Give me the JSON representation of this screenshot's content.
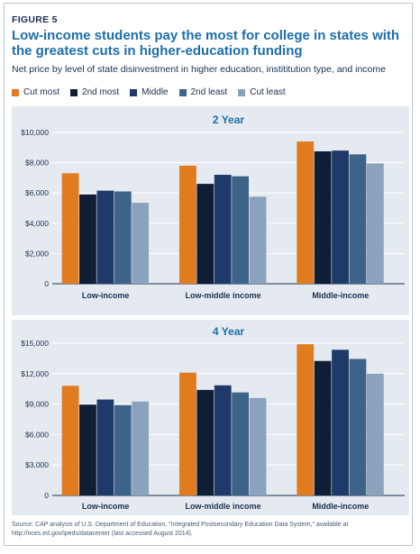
{
  "figure_label": "FIGURE 5",
  "title": "Low-income students pay the most for college in states with the greatest cuts in higher-education funding",
  "subtitle": "Net price by level of state disinvestment in higher education, instititution type, and income",
  "source": "Source: CAP analysis of U.S. Department of Education, \"Integrated Postsecondary Education Data System,\" available at http://nces.ed.gov/ipeds/datacenter (last accessed August 2014).",
  "legend": [
    {
      "label": "Cut most",
      "color": "#e07b20"
    },
    {
      "label": "2nd most",
      "color": "#0f1d35"
    },
    {
      "label": "Middle",
      "color": "#1f3a68"
    },
    {
      "label": "2nd least",
      "color": "#3e6389"
    },
    {
      "label": "Cut least",
      "color": "#8aa2bc"
    }
  ],
  "chart_data": [
    {
      "type": "bar",
      "title": "2 Year",
      "categories": [
        "Low-income",
        "Low-middle income",
        "Middle-income"
      ],
      "ylim": [
        0,
        10000
      ],
      "yticks": [
        0,
        2000,
        4000,
        6000,
        8000,
        10000
      ],
      "ytick_labels": [
        "0",
        "$2,000",
        "$4,000",
        "$6,000",
        "$8,000",
        "$10,000"
      ],
      "series": [
        {
          "name": "Cut most",
          "values": [
            7300,
            7800,
            9400
          ]
        },
        {
          "name": "2nd most",
          "values": [
            5900,
            6600,
            8750
          ]
        },
        {
          "name": "Middle",
          "values": [
            6150,
            7200,
            8800
          ]
        },
        {
          "name": "2nd least",
          "values": [
            6100,
            7100,
            8550
          ]
        },
        {
          "name": "Cut least",
          "values": [
            5350,
            5750,
            7950
          ]
        }
      ]
    },
    {
      "type": "bar",
      "title": "4 Year",
      "categories": [
        "Low-income",
        "Low-middle income",
        "Middle-income"
      ],
      "ylim": [
        0,
        15000
      ],
      "yticks": [
        0,
        3000,
        6000,
        9000,
        12000,
        15000
      ],
      "ytick_labels": [
        "0",
        "$3,000",
        "$6,000",
        "$9,000",
        "$12,000",
        "$15,000"
      ],
      "series": [
        {
          "name": "Cut most",
          "values": [
            10800,
            12100,
            14900
          ]
        },
        {
          "name": "2nd most",
          "values": [
            8950,
            10400,
            13250
          ]
        },
        {
          "name": "Middle",
          "values": [
            9450,
            10850,
            14350
          ]
        },
        {
          "name": "2nd least",
          "values": [
            8900,
            10150,
            13450
          ]
        },
        {
          "name": "Cut least",
          "values": [
            9250,
            9600,
            12000
          ]
        }
      ]
    }
  ]
}
